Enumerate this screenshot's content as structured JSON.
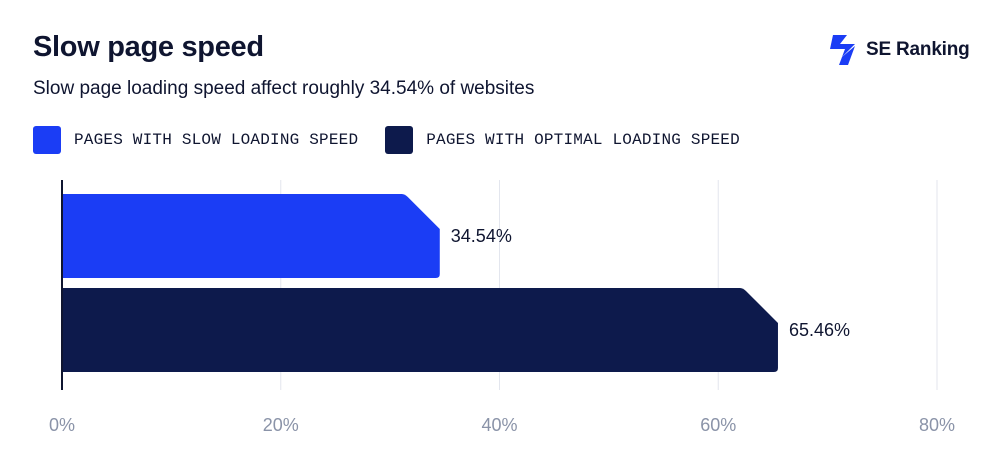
{
  "header": {
    "title": "Slow page speed",
    "subtitle": "Slow page loading speed affect roughly 34.54% of websites"
  },
  "brand": {
    "name": "SE Ranking",
    "icon": "se-ranking-logo-icon",
    "color": "#1b3df5"
  },
  "chart_data": {
    "type": "bar",
    "orientation": "horizontal",
    "title": "Slow page speed",
    "subtitle": "Slow page loading speed affect roughly 34.54% of websites",
    "categories": [
      "PAGES WITH SLOW LOADING SPEED",
      "PAGES WITH OPTIMAL LOADING SPEED"
    ],
    "values": [
      34.54,
      65.46
    ],
    "value_labels": [
      "34.54%",
      "65.46%"
    ],
    "colors": [
      "#1b3df5",
      "#0d1a4c"
    ],
    "xlim": [
      0,
      80
    ],
    "x_ticks": [
      0,
      20,
      40,
      60,
      80
    ],
    "x_tick_labels": [
      "0%",
      "20%",
      "40%",
      "60%",
      "80%"
    ],
    "xlabel": "",
    "ylabel": "",
    "grid": true,
    "legend_position": "top-left",
    "legend": [
      {
        "label": "PAGES WITH SLOW LOADING SPEED",
        "color": "#1b3df5"
      },
      {
        "label": "PAGES WITH OPTIMAL LOADING SPEED",
        "color": "#0d1a4c"
      }
    ]
  }
}
